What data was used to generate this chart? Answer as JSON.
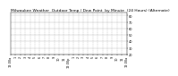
{
  "title": "Milwaukee Weather  Outdoor Temp / Dew Point  by Minute  (24 Hours) (Alternate)",
  "temp_color": "#dd0000",
  "dew_color": "#0000cc",
  "background_color": "#ffffff",
  "grid_color": "#aaaaaa",
  "ylim": [
    20,
    85
  ],
  "xlim": [
    0,
    1440
  ],
  "yticks": [
    20,
    30,
    40,
    50,
    60,
    70,
    80
  ],
  "ytick_labels": [
    "20",
    "30",
    "40",
    "50",
    "60",
    "70",
    "80"
  ],
  "xtick_positions": [
    0,
    60,
    120,
    180,
    240,
    300,
    360,
    420,
    480,
    540,
    600,
    660,
    720,
    780,
    840,
    900,
    960,
    1020,
    1080,
    1140,
    1200,
    1260,
    1320,
    1380,
    1440
  ],
  "xtick_labels": [
    "12:00a",
    "1",
    "2",
    "3",
    "4",
    "5",
    "6",
    "7",
    "8",
    "9",
    "10",
    "11",
    "12:00p",
    "1",
    "2",
    "3",
    "4",
    "5",
    "6",
    "7",
    "8",
    "9",
    "10",
    "11",
    "12:00a"
  ],
  "title_fontsize": 3.2,
  "tick_fontsize": 2.5,
  "marker_size": 0.5
}
